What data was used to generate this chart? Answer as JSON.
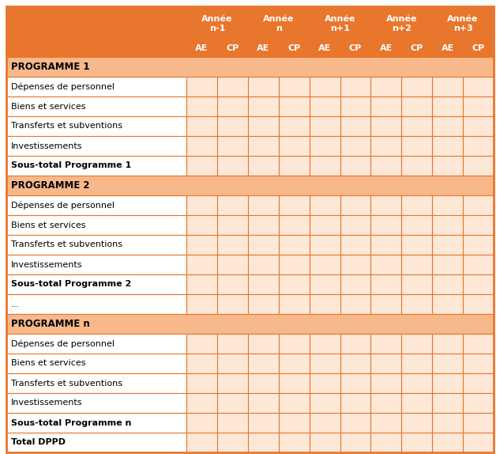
{
  "orange": "#E8762C",
  "section_header_bg": "#F7B98B",
  "data_bg": "#FDE8D8",
  "white": "#FFFFFF",
  "border_color": "#E8762C",
  "year_labels": [
    "Année\nn-1",
    "Année\nn",
    "Année\nn+1",
    "Année\nn+2",
    "Année\nn+3"
  ],
  "ae_cp": [
    "AE",
    "CP"
  ],
  "rows": [
    {
      "label": "PROGRAMME 1",
      "type": "section_header"
    },
    {
      "label": "Dépenses de personnel",
      "type": "data"
    },
    {
      "label": "Biens et services",
      "type": "data"
    },
    {
      "label": "Transferts et subventions",
      "type": "data"
    },
    {
      "label": "Investissements",
      "type": "data"
    },
    {
      "label": "Sous-total Programme 1",
      "type": "subtotal"
    },
    {
      "label": "PROGRAMME 2",
      "type": "section_header"
    },
    {
      "label": "Dépenses de personnel",
      "type": "data"
    },
    {
      "label": "Biens et services",
      "type": "data"
    },
    {
      "label": "Transferts et subventions",
      "type": "data"
    },
    {
      "label": "Investissements",
      "type": "data"
    },
    {
      "label": "Sous-total Programme 2",
      "type": "subtotal"
    },
    {
      "label": "...",
      "type": "data"
    },
    {
      "label": "PROGRAMME n",
      "type": "section_header"
    },
    {
      "label": "Dépenses de personnel",
      "type": "data"
    },
    {
      "label": "Biens et services",
      "type": "data"
    },
    {
      "label": "Transferts et subventions",
      "type": "data"
    },
    {
      "label": "Investissements",
      "type": "data"
    },
    {
      "label": "Sous-total Programme n",
      "type": "subtotal"
    },
    {
      "label": "Total DPPD",
      "type": "total"
    }
  ]
}
